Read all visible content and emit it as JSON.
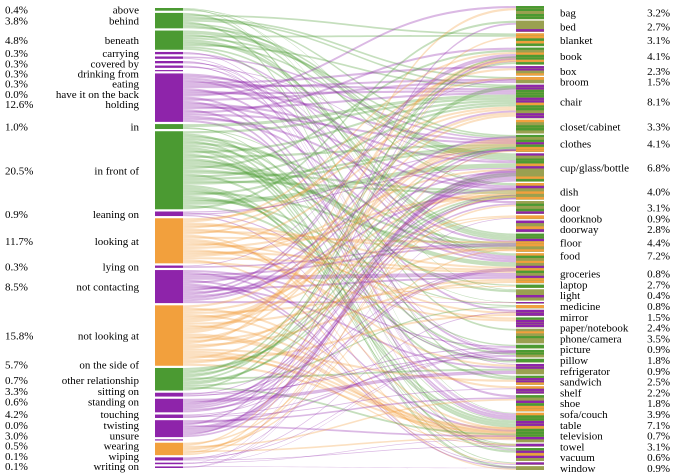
{
  "chart_data": {
    "type": "sankey",
    "colors": {
      "spatial": "#4b9a32",
      "contact": "#8e24aa",
      "attention": "#f2a03d",
      "other": "#9aa050"
    },
    "relations": [
      {
        "name": "above",
        "percent": "0.4%",
        "value": 0.4,
        "category": "spatial"
      },
      {
        "name": "behind",
        "percent": "3.8%",
        "value": 3.8,
        "category": "spatial"
      },
      {
        "name": "beneath",
        "percent": "4.8%",
        "value": 4.8,
        "category": "spatial"
      },
      {
        "name": "carrying",
        "percent": "0.3%",
        "value": 0.3,
        "category": "contact"
      },
      {
        "name": "covered by",
        "percent": "0.3%",
        "value": 0.3,
        "category": "contact"
      },
      {
        "name": "drinking from",
        "percent": "0.3%",
        "value": 0.3,
        "category": "contact"
      },
      {
        "name": "eating",
        "percent": "0.3%",
        "value": 0.3,
        "category": "contact"
      },
      {
        "name": "have it on the back",
        "percent": "0.0%",
        "value": 0.0,
        "category": "contact"
      },
      {
        "name": "holding",
        "percent": "12.6%",
        "value": 12.6,
        "category": "contact"
      },
      {
        "name": "in",
        "percent": "1.0%",
        "value": 1.0,
        "category": "spatial"
      },
      {
        "name": "in front of",
        "percent": "20.5%",
        "value": 20.5,
        "category": "spatial"
      },
      {
        "name": "leaning on",
        "percent": "0.9%",
        "value": 0.9,
        "category": "contact"
      },
      {
        "name": "looking at",
        "percent": "11.7%",
        "value": 11.7,
        "category": "attention"
      },
      {
        "name": "lying on",
        "percent": "0.3%",
        "value": 0.3,
        "category": "contact"
      },
      {
        "name": "not contacting",
        "percent": "8.5%",
        "value": 8.5,
        "category": "contact"
      },
      {
        "name": "not looking at",
        "percent": "15.8%",
        "value": 15.8,
        "category": "attention"
      },
      {
        "name": "on the side of",
        "percent": "5.7%",
        "value": 5.7,
        "category": "spatial"
      },
      {
        "name": "other relationship",
        "percent": "0.7%",
        "value": 0.7,
        "category": "contact"
      },
      {
        "name": "sitting on",
        "percent": "3.3%",
        "value": 3.3,
        "category": "contact"
      },
      {
        "name": "standing on",
        "percent": "0.6%",
        "value": 0.6,
        "category": "contact"
      },
      {
        "name": "touching",
        "percent": "4.2%",
        "value": 4.2,
        "category": "contact"
      },
      {
        "name": "twisting",
        "percent": "0.0%",
        "value": 0.0,
        "category": "contact"
      },
      {
        "name": "unsure",
        "percent": "3.0%",
        "value": 3.0,
        "category": "attention"
      },
      {
        "name": "wearing",
        "percent": "0.5%",
        "value": 0.5,
        "category": "contact"
      },
      {
        "name": "wiping",
        "percent": "0.1%",
        "value": 0.1,
        "category": "contact"
      },
      {
        "name": "writing on",
        "percent": "0.1%",
        "value": 0.1,
        "category": "contact"
      }
    ],
    "objects": [
      {
        "name": "bag",
        "percent": "3.2%",
        "value": 3.2
      },
      {
        "name": "bed",
        "percent": "2.7%",
        "value": 2.7
      },
      {
        "name": "blanket",
        "percent": "3.1%",
        "value": 3.1
      },
      {
        "name": "book",
        "percent": "4.1%",
        "value": 4.1
      },
      {
        "name": "box",
        "percent": "2.3%",
        "value": 2.3
      },
      {
        "name": "broom",
        "percent": "1.5%",
        "value": 1.5
      },
      {
        "name": "chair",
        "percent": "8.1%",
        "value": 8.1
      },
      {
        "name": "closet/cabinet",
        "percent": "3.3%",
        "value": 3.3
      },
      {
        "name": "clothes",
        "percent": "4.1%",
        "value": 4.1
      },
      {
        "name": "cup/glass/bottle",
        "percent": "6.8%",
        "value": 6.8
      },
      {
        "name": "dish",
        "percent": "4.0%",
        "value": 4.0
      },
      {
        "name": "door",
        "percent": "3.1%",
        "value": 3.1
      },
      {
        "name": "doorknob",
        "percent": "0.9%",
        "value": 0.9
      },
      {
        "name": "doorway",
        "percent": "2.8%",
        "value": 2.8
      },
      {
        "name": "floor",
        "percent": "4.4%",
        "value": 4.4
      },
      {
        "name": "food",
        "percent": "7.2%",
        "value": 7.2
      },
      {
        "name": "groceries",
        "percent": "0.8%",
        "value": 0.8
      },
      {
        "name": "laptop",
        "percent": "2.7%",
        "value": 2.7
      },
      {
        "name": "light",
        "percent": "0.4%",
        "value": 0.4
      },
      {
        "name": "medicine",
        "percent": "0.8%",
        "value": 0.8
      },
      {
        "name": "mirror",
        "percent": "1.5%",
        "value": 1.5
      },
      {
        "name": "paper/notebook",
        "percent": "2.4%",
        "value": 2.4
      },
      {
        "name": "phone/camera",
        "percent": "3.5%",
        "value": 3.5
      },
      {
        "name": "picture",
        "percent": "0.9%",
        "value": 0.9
      },
      {
        "name": "pillow",
        "percent": "1.8%",
        "value": 1.8
      },
      {
        "name": "refrigerator",
        "percent": "0.9%",
        "value": 0.9
      },
      {
        "name": "sandwich",
        "percent": "2.5%",
        "value": 2.5
      },
      {
        "name": "shelf",
        "percent": "2.2%",
        "value": 2.2
      },
      {
        "name": "shoe",
        "percent": "1.8%",
        "value": 1.8
      },
      {
        "name": "sofa/couch",
        "percent": "3.9%",
        "value": 3.9
      },
      {
        "name": "table",
        "percent": "7.1%",
        "value": 7.1
      },
      {
        "name": "television",
        "percent": "0.7%",
        "value": 0.7
      },
      {
        "name": "towel",
        "percent": "3.1%",
        "value": 3.1
      },
      {
        "name": "vacuum",
        "percent": "0.6%",
        "value": 0.6
      },
      {
        "name": "window",
        "percent": "0.9%",
        "value": 0.9
      }
    ]
  }
}
